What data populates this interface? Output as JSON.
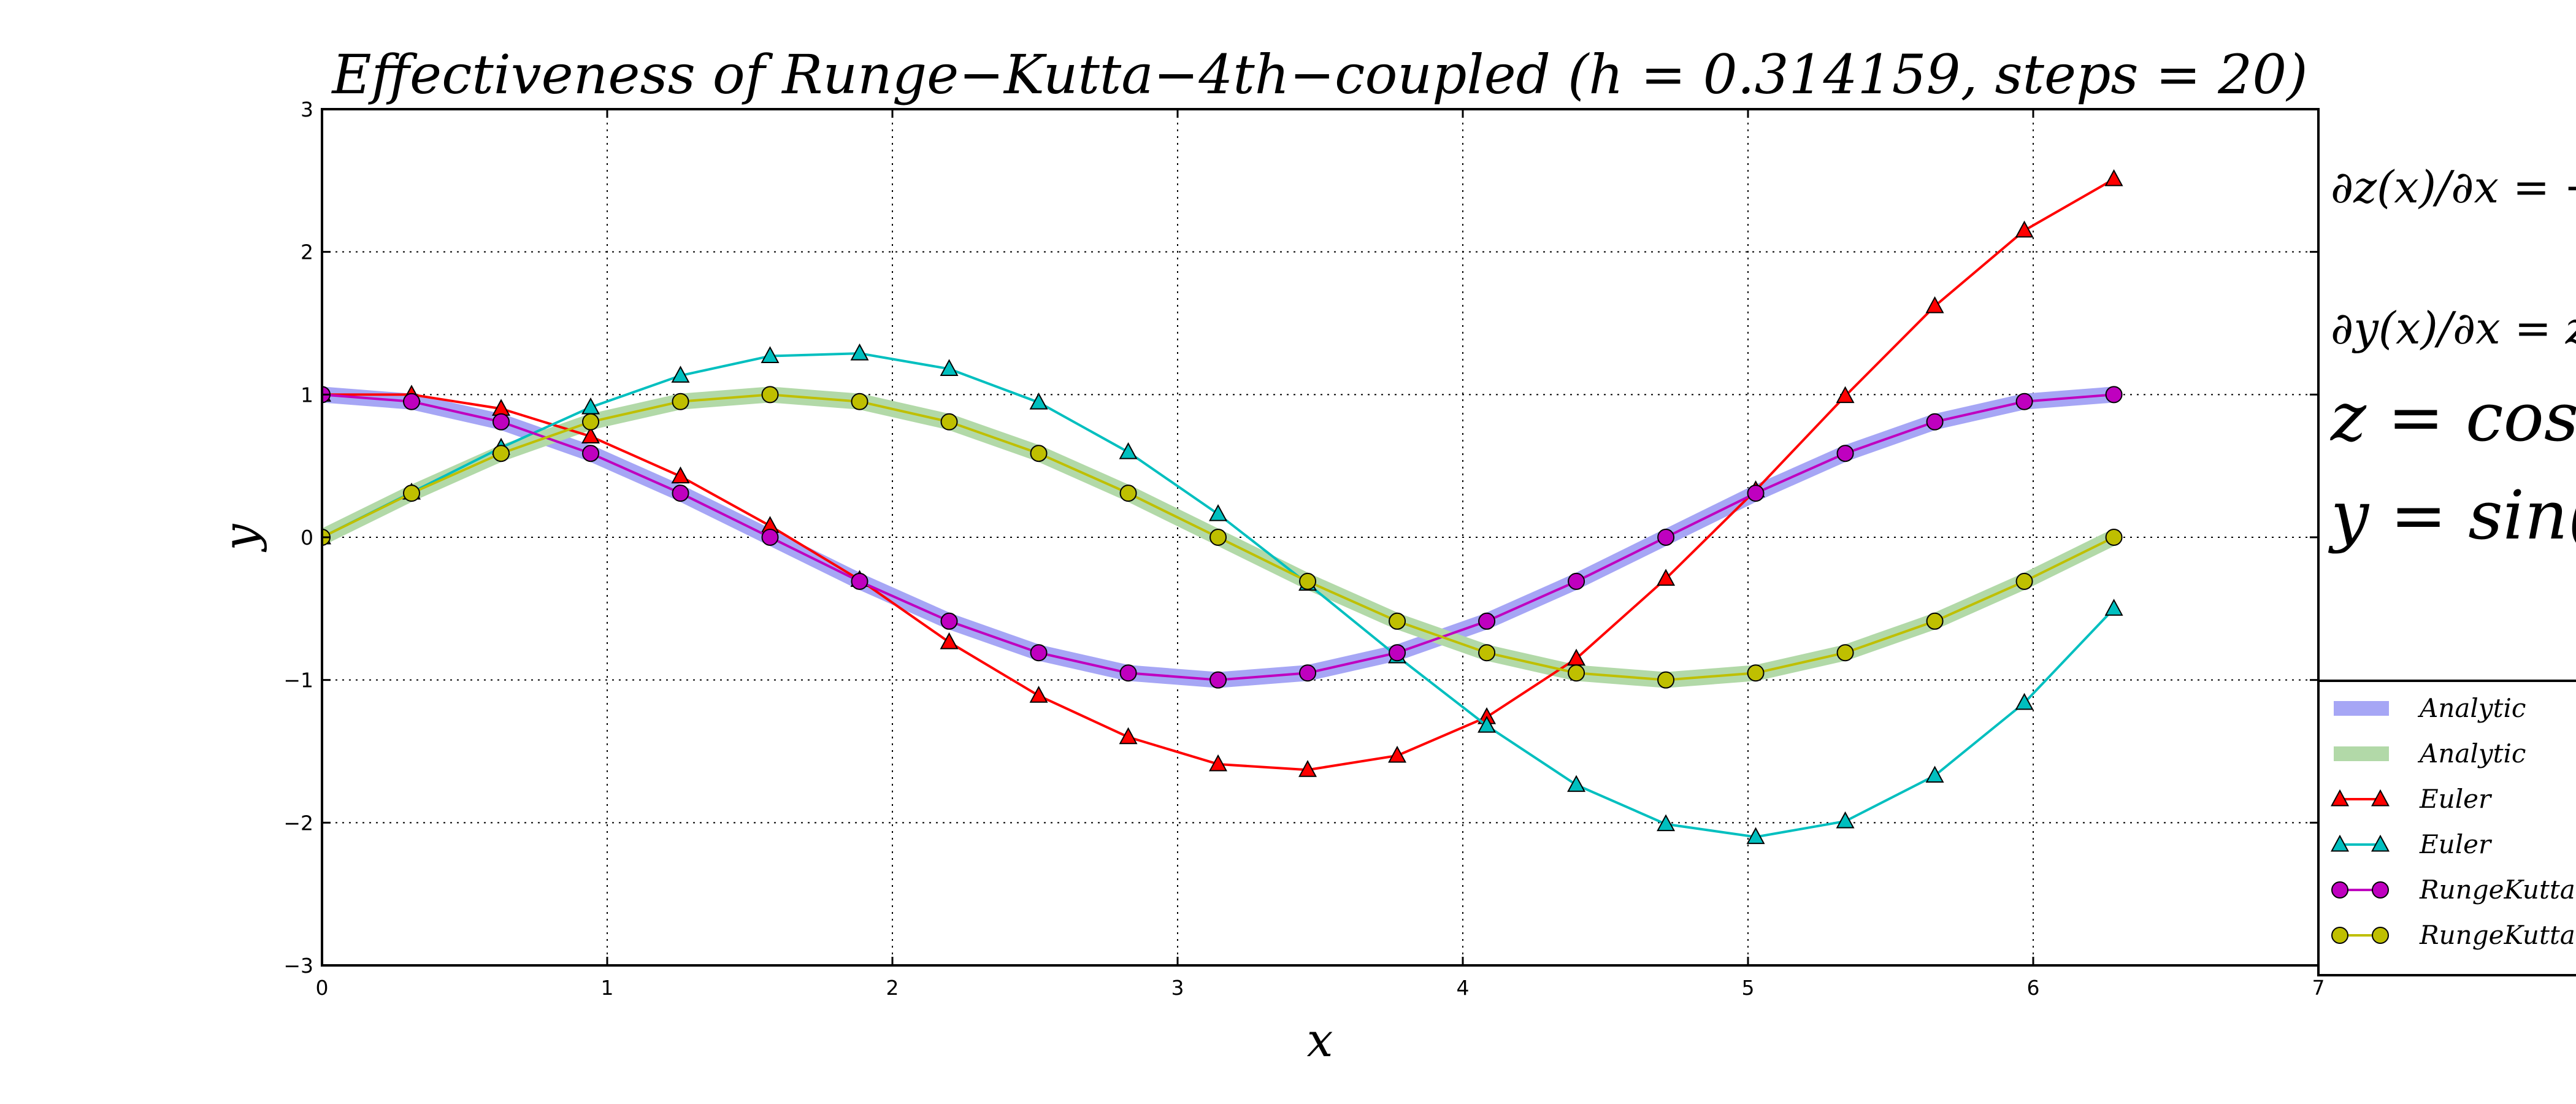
{
  "chart_data": {
    "type": "line",
    "title": "Effectiveness of Runge−Kutta−4th−coupled (h = 0.314159, steps = 20)",
    "xlabel": "x",
    "ylabel": "y",
    "xlim": [
      0,
      7
    ],
    "ylim": [
      -3,
      3
    ],
    "xticks": [
      "0",
      "1",
      "2",
      "3",
      "4",
      "5",
      "6",
      "7"
    ],
    "yticks": [
      "−3",
      "−2",
      "−1",
      "0",
      "1",
      "2",
      "3"
    ],
    "grid": true,
    "x": [
      0,
      0.314,
      0.628,
      0.942,
      1.257,
      1.571,
      1.885,
      2.199,
      2.513,
      2.827,
      3.142,
      3.456,
      3.77,
      4.084,
      4.398,
      4.712,
      5.027,
      5.341,
      5.655,
      5.969,
      6.283
    ],
    "equations": {
      "eq1": "∂z(x)/∂x = −",
      "eq2": "∂y(x)/∂x = z",
      "eq3": "z = cos(x",
      "eq4": "y = sin(x"
    },
    "legend": {
      "placement": "right",
      "entries": [
        "Analytic",
        "Analytic",
        "Euler",
        "Euler",
        "RungeKutta",
        "RungeKutta"
      ]
    },
    "series": [
      {
        "name": "Analytic",
        "style": "band",
        "color": "#a6a6f5",
        "values": [
          1.0,
          0.951,
          0.809,
          0.588,
          0.309,
          0.0,
          -0.309,
          -0.588,
          -0.809,
          -0.951,
          -1.0,
          -0.951,
          -0.809,
          -0.588,
          -0.309,
          0.0,
          0.309,
          0.588,
          0.809,
          0.951,
          1.0
        ]
      },
      {
        "name": "Analytic",
        "style": "band",
        "color": "#b2d9a8",
        "values": [
          0.0,
          0.309,
          0.588,
          0.809,
          0.951,
          1.0,
          0.951,
          0.809,
          0.588,
          0.309,
          0.0,
          -0.309,
          -0.588,
          -0.809,
          -0.951,
          -1.0,
          -0.951,
          -0.809,
          -0.588,
          -0.309,
          0.0
        ]
      },
      {
        "name": "Euler",
        "style": "triangle",
        "color": "#ff0000",
        "values": [
          1.0,
          1.0,
          0.901,
          0.707,
          0.427,
          0.08,
          -0.298,
          -0.735,
          -1.11,
          -1.4,
          -1.59,
          -1.63,
          -1.53,
          -1.26,
          -0.85,
          -0.29,
          0.33,
          0.99,
          1.62,
          2.15,
          2.51
        ]
      },
      {
        "name": "Euler",
        "style": "triangle",
        "color": "#00bfbf",
        "values": [
          0.0,
          0.314,
          0.628,
          0.911,
          1.133,
          1.27,
          1.289,
          1.18,
          0.945,
          0.597,
          0.163,
          -0.325,
          -0.834,
          -1.32,
          -1.735,
          -2.01,
          -2.1,
          -1.99,
          -1.67,
          -1.16,
          -0.5
        ]
      },
      {
        "name": "RungeKutta",
        "style": "circle",
        "color": "#bf00bf",
        "values": [
          1.0,
          0.951,
          0.809,
          0.588,
          0.309,
          0.0,
          -0.309,
          -0.588,
          -0.809,
          -0.951,
          -1.0,
          -0.951,
          -0.809,
          -0.588,
          -0.309,
          0.0,
          0.309,
          0.588,
          0.809,
          0.951,
          1.0
        ]
      },
      {
        "name": "RungeKutta",
        "style": "circle",
        "color": "#bfbf00",
        "values": [
          0.0,
          0.309,
          0.588,
          0.809,
          0.951,
          1.0,
          0.951,
          0.809,
          0.588,
          0.309,
          0.0,
          -0.309,
          -0.588,
          -0.809,
          -0.951,
          -1.0,
          -0.951,
          -0.809,
          -0.588,
          -0.309,
          0.0
        ]
      }
    ]
  }
}
